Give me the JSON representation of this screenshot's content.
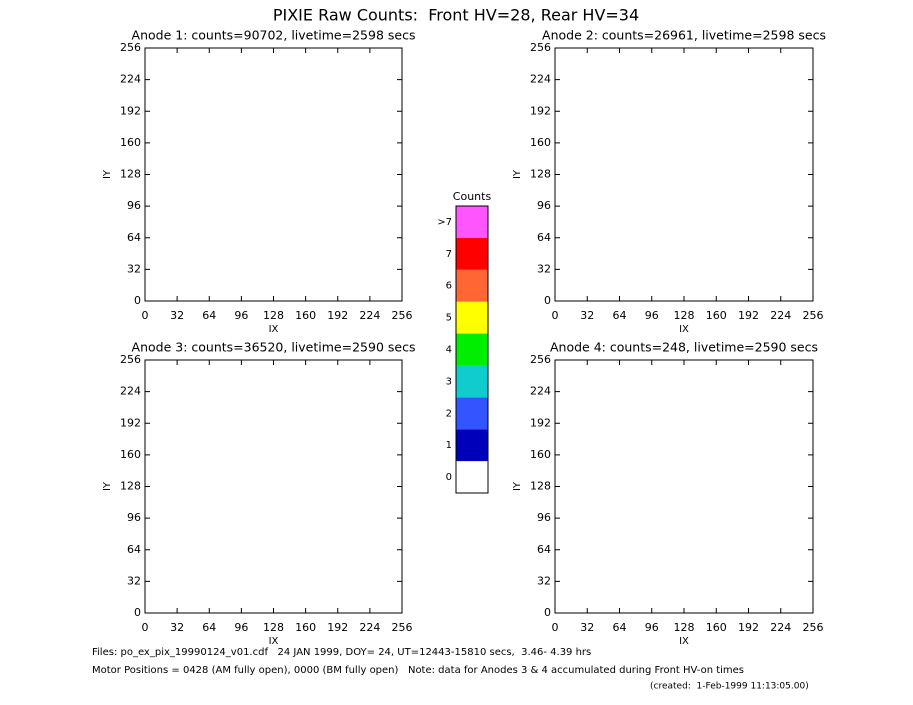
{
  "title": "PIXIE Raw Counts:  Front HV=28, Rear HV=34",
  "chart_data": [
    {
      "type": "heatmap",
      "title": "Anode 1: counts=90702, livetime=2598 secs",
      "x_label": "IX",
      "y_label": "IY",
      "xlim": [
        0,
        256
      ],
      "ylim": [
        0,
        256
      ],
      "xticks": [
        0,
        32,
        64,
        96,
        128,
        160,
        192,
        224,
        256
      ],
      "yticks": [
        0,
        32,
        64,
        96,
        128,
        160,
        192,
        224,
        256
      ]
    },
    {
      "type": "heatmap",
      "title": "Anode 2: counts=26961, livetime=2598 secs",
      "x_label": "IX",
      "y_label": "IY",
      "xlim": [
        0,
        256
      ],
      "ylim": [
        0,
        256
      ],
      "xticks": [
        0,
        32,
        64,
        96,
        128,
        160,
        192,
        224,
        256
      ],
      "yticks": [
        0,
        32,
        64,
        96,
        128,
        160,
        192,
        224,
        256
      ]
    },
    {
      "type": "heatmap",
      "title": "Anode 3: counts=36520, livetime=2590 secs",
      "x_label": "IX",
      "y_label": "IY",
      "xlim": [
        0,
        256
      ],
      "ylim": [
        0,
        256
      ],
      "xticks": [
        0,
        32,
        64,
        96,
        128,
        160,
        192,
        224,
        256
      ],
      "yticks": [
        0,
        32,
        64,
        96,
        128,
        160,
        192,
        224,
        256
      ]
    },
    {
      "type": "heatmap",
      "title": "Anode 4: counts=248, livetime=2590 secs",
      "x_label": "IX",
      "y_label": "IY",
      "xlim": [
        0,
        256
      ],
      "ylim": [
        0,
        256
      ],
      "xticks": [
        0,
        32,
        64,
        96,
        128,
        160,
        192,
        224,
        256
      ],
      "yticks": [
        0,
        32,
        64,
        96,
        128,
        160,
        192,
        224,
        256
      ]
    }
  ],
  "colorbar": {
    "title": "Counts",
    "levels": [
      0,
      1,
      2,
      3,
      4,
      5,
      6,
      7,
      ">7"
    ],
    "colors": [
      "#ffffff",
      "#0000bb",
      "#3355ff",
      "#11cccc",
      "#00ee00",
      "#ffff00",
      "#ff6633",
      "#ff0000",
      "#ff55ff"
    ]
  },
  "footer": [
    "Files: po_ex_pix_19990124_v01.cdf   24 JAN 1999, DOY= 24, UT=12443-15810 secs,  3.46- 4.39 hrs",
    "Motor Positions = 0428 (AM fully open), 0000 (BM fully open)   Note: data for Anodes 3 & 4 accumulated during Front HV-on times",
    "(created:  1-Feb-1999 11:13:05.00)"
  ]
}
